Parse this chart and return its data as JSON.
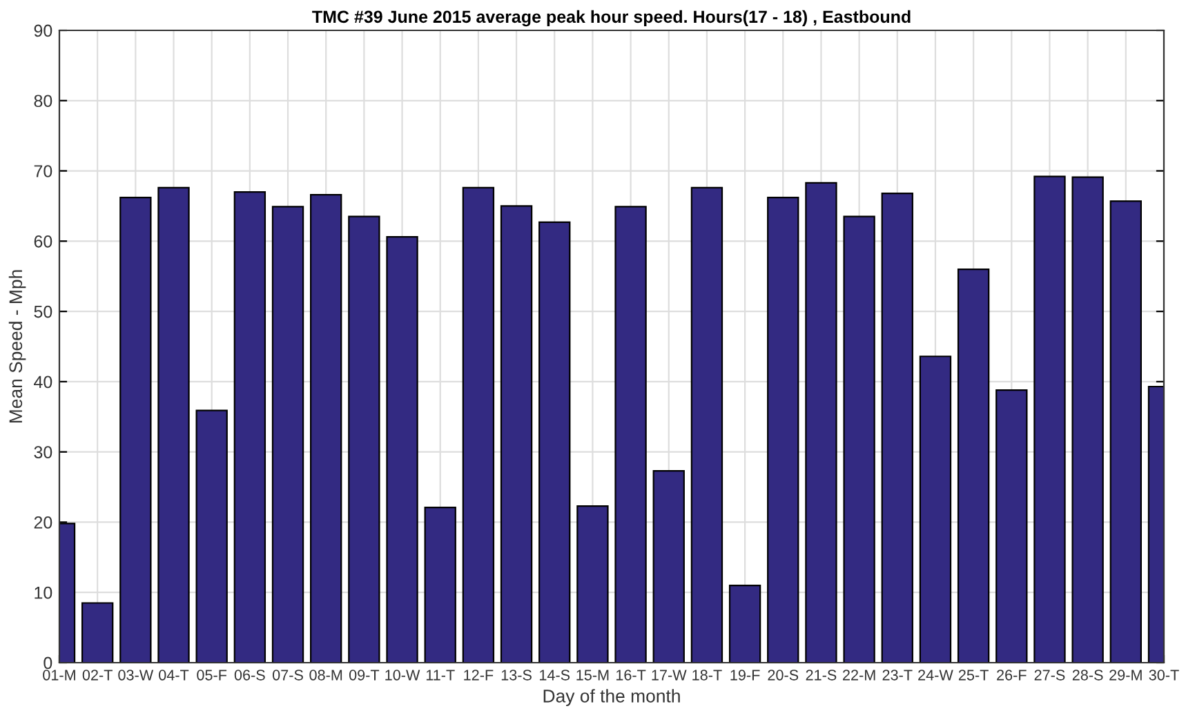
{
  "chart_data": {
    "type": "bar",
    "title": "TMC #39 June 2015 average peak hour speed. Hours(17 - 18) , Eastbound",
    "xlabel": "Day of the month",
    "ylabel": "Mean Speed - Mph",
    "categories": [
      "01-M",
      "02-T",
      "03-W",
      "04-T",
      "05-F",
      "06-S",
      "07-S",
      "08-M",
      "09-T",
      "10-W",
      "11-T",
      "12-F",
      "13-S",
      "14-S",
      "15-M",
      "16-T",
      "17-W",
      "18-T",
      "19-F",
      "20-S",
      "21-S",
      "22-M",
      "23-T",
      "24-W",
      "25-T",
      "26-F",
      "27-S",
      "28-S",
      "29-M",
      "30-T"
    ],
    "values": [
      19.8,
      8.5,
      66.2,
      67.6,
      35.9,
      67.0,
      64.9,
      66.6,
      63.5,
      60.6,
      22.1,
      67.6,
      65.0,
      62.7,
      22.3,
      64.9,
      27.3,
      67.6,
      11.0,
      66.2,
      68.3,
      63.5,
      66.8,
      43.6,
      56.0,
      38.8,
      69.2,
      69.1,
      65.7,
      39.3
    ],
    "color": "#332a82",
    "ylim": [
      0,
      90
    ],
    "yticks": [
      0,
      10,
      20,
      30,
      40,
      50,
      60,
      70,
      80,
      90
    ],
    "grid": true
  }
}
